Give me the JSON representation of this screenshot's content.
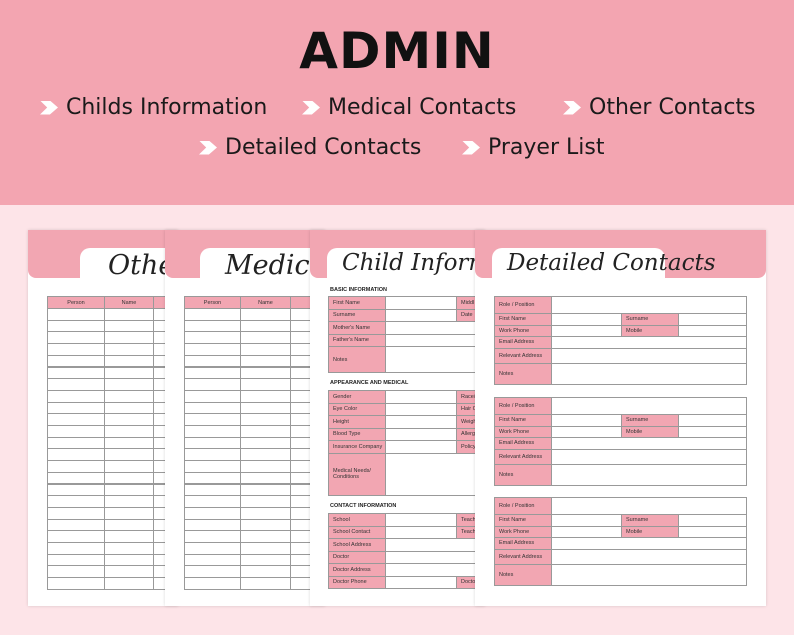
{
  "header": {
    "title": "ADMIN",
    "items": [
      "Childs Information",
      "Medical Contacts",
      "Other Contacts",
      "Detailed Contacts",
      "Prayer List"
    ]
  },
  "colors": {
    "banner": "#f3a5b1",
    "background": "#fde4e8",
    "label_fill": "#f2a6b2"
  },
  "pages": {
    "other": {
      "title": "Other",
      "columns": [
        "Person",
        "Name",
        ""
      ]
    },
    "medical": {
      "title": "Medical",
      "columns": [
        "Person",
        "Name",
        ""
      ]
    },
    "child": {
      "title": "Child Informatio",
      "sections": [
        {
          "heading": "BASIC INFORMATION",
          "rows": [
            [
              "First Name",
              "Middl"
            ],
            [
              "Surname",
              "Date"
            ],
            [
              "Mother's Name",
              ""
            ],
            [
              "Father's Name",
              ""
            ],
            [
              "Notes",
              ""
            ]
          ]
        },
        {
          "heading": "APPEARANCE AND MEDICAL",
          "rows": [
            [
              "Gender",
              "Race/"
            ],
            [
              "Eye Color",
              "Hair C"
            ],
            [
              "Height",
              "Weigh"
            ],
            [
              "Blood Type",
              "Allerg"
            ],
            [
              "Insurance Company",
              "Policy"
            ],
            [
              "Medical Needs/ Conditions",
              ""
            ]
          ]
        },
        {
          "heading": "CONTACT INFORMATION",
          "rows": [
            [
              "School",
              "Teach"
            ],
            [
              "School Contact",
              "Teach"
            ],
            [
              "School Address",
              ""
            ],
            [
              "Doctor",
              ""
            ],
            [
              "Doctor Address",
              ""
            ],
            [
              "Doctor Phone",
              "Docto"
            ]
          ]
        }
      ]
    },
    "detailed": {
      "title": "Detailed Contacts",
      "labels": {
        "role": "Role / Position",
        "first": "First Name",
        "surname": "Surname",
        "work": "Work Phone",
        "mobile": "Mobile",
        "email": "Email Address",
        "address": "Relevant Address",
        "notes": "Notes"
      }
    }
  }
}
